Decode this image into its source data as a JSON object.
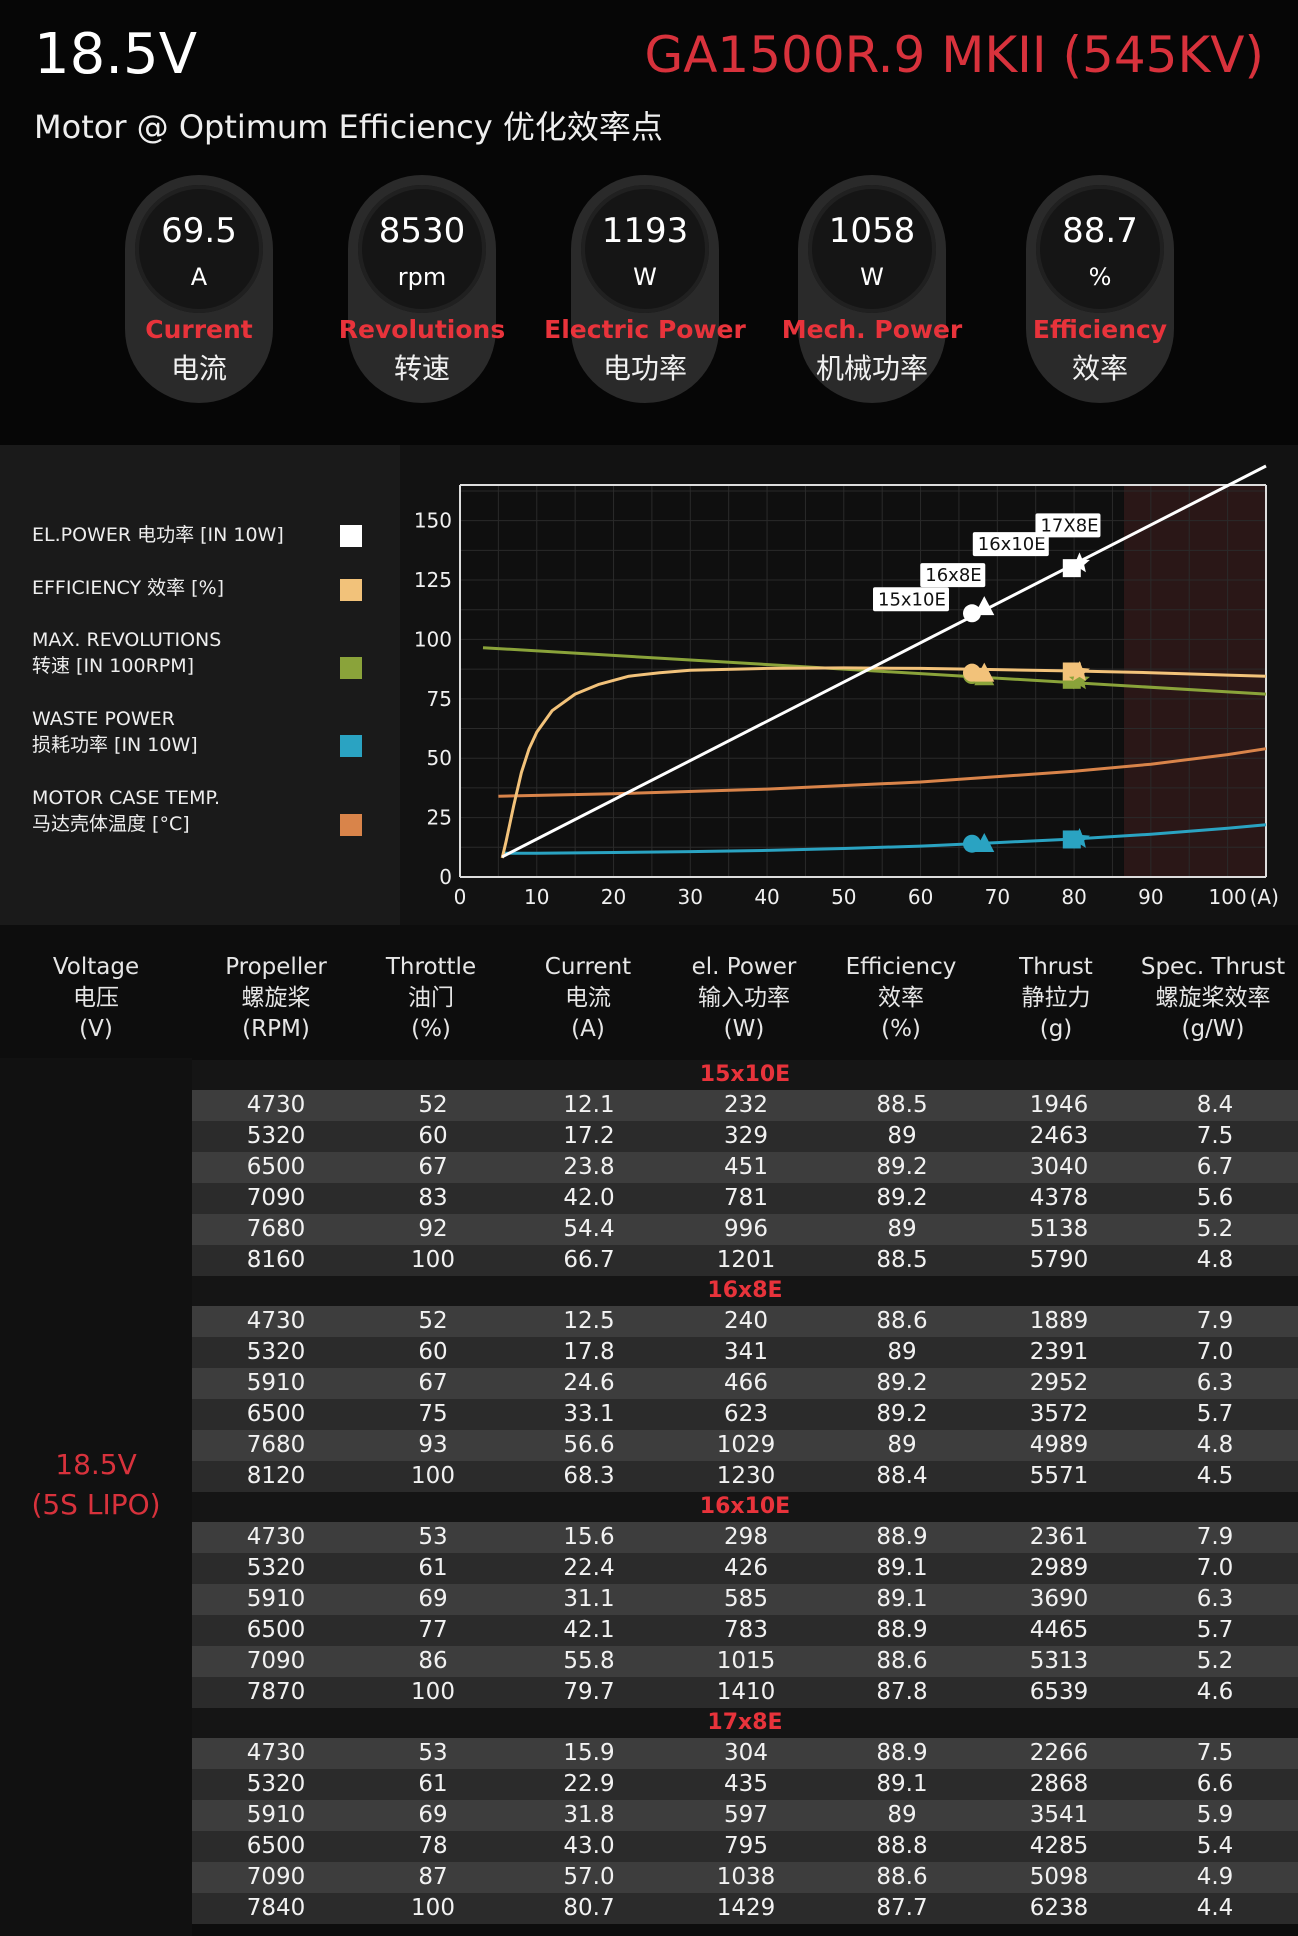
{
  "header": {
    "voltage": "18.5V",
    "model": "GA1500R.9 MKII (545KV)",
    "subtitle": "Motor @ Optimum Efficiency  优化效率点"
  },
  "metrics": [
    {
      "value": "69.5",
      "unit": "A",
      "en": "Current",
      "cn": "电流"
    },
    {
      "value": "8530",
      "unit": "rpm",
      "en": "Revolutions",
      "cn": "转速"
    },
    {
      "value": "1193",
      "unit": "W",
      "en": "Electric Power",
      "cn": "电功率"
    },
    {
      "value": "1058",
      "unit": "W",
      "en": "Mech. Power",
      "cn": "机械功率"
    },
    {
      "value": "88.7",
      "unit": "%",
      "en": "Efficiency",
      "cn": "效率"
    }
  ],
  "legend": [
    {
      "line1": "EL.POWER 电功率 [IN 10W]",
      "line2": "",
      "color": "#ffffff"
    },
    {
      "line1": "EFFICIENCY 效率 [%]",
      "line2": "",
      "color": "#f2c27a"
    },
    {
      "line1": "MAX. REVOLUTIONS",
      "line2": "转速 [IN 100RPM]",
      "color": "#8aa33a"
    },
    {
      "line1": "WASTE POWER",
      "line2": "损耗功率 [IN 10W]",
      "color": "#2aa3c2"
    },
    {
      "line1": "MOTOR CASE TEMP.",
      "line2": "马达壳体温度 [°C]",
      "color": "#d9844a"
    }
  ],
  "chart_data": {
    "type": "line",
    "xlabel": "(A)",
    "xlim": [
      0,
      105
    ],
    "ylim": [
      0,
      165
    ],
    "x_ticks": [
      0,
      10,
      20,
      30,
      40,
      50,
      60,
      70,
      80,
      90,
      100
    ],
    "y_ticks": [
      0,
      25,
      50,
      75,
      100,
      125,
      150
    ],
    "grid": true,
    "shaded_region_x": [
      86.5,
      105
    ],
    "series": [
      {
        "name": "EL.POWER 电功率 [IN 10W]",
        "color": "#ffffff",
        "x": [
          5.5,
          105
        ],
        "y": [
          8.5,
          173
        ]
      },
      {
        "name": "EFFICIENCY 效率 [%]",
        "color": "#f2c27a",
        "x": [
          5.5,
          6,
          7,
          8,
          9,
          10,
          12,
          15,
          18,
          22,
          26,
          30,
          40,
          50,
          60,
          70,
          80,
          90,
          100,
          105
        ],
        "y": [
          8,
          15,
          30,
          44,
          54,
          61,
          70,
          77,
          81,
          84.5,
          86,
          87,
          87.8,
          88,
          87.8,
          87.3,
          86.7,
          86,
          85,
          84.5
        ]
      },
      {
        "name": "MAX. REVOLUTIONS 转速 [IN 100RPM]",
        "color": "#8aa33a",
        "x": [
          3,
          105
        ],
        "y": [
          96.5,
          77
        ]
      },
      {
        "name": "WASTE POWER 损耗功率 [IN 10W]",
        "color": "#2aa3c2",
        "x": [
          5.5,
          10,
          20,
          30,
          40,
          50,
          60,
          70,
          80,
          90,
          100,
          105
        ],
        "y": [
          10,
          10,
          10.3,
          10.7,
          11.2,
          12,
          13,
          14.5,
          16,
          18,
          20.5,
          22
        ]
      },
      {
        "name": "MOTOR CASE TEMP. 马达壳体温度 [°C]",
        "color": "#d9844a",
        "x": [
          5,
          20,
          40,
          60,
          80,
          90,
          100,
          105
        ],
        "y": [
          34,
          35,
          37,
          40,
          44.5,
          47.5,
          51.5,
          54
        ]
      }
    ],
    "prop_points": [
      {
        "label": "15x10E",
        "x": 66.7,
        "marker": "circle",
        "power": 111,
        "eff": 86,
        "rpm": 85,
        "waste": 14
      },
      {
        "label": "16x8E",
        "x": 68.3,
        "marker": "triangle",
        "power": 114,
        "eff": 86,
        "rpm": 84.5,
        "waste": 14.3
      },
      {
        "label": "16x10E",
        "x": 79.7,
        "marker": "square",
        "power": 130,
        "eff": 86.5,
        "rpm": 83,
        "waste": 15.8
      },
      {
        "label": "17X8E",
        "x": 80.7,
        "marker": "star",
        "power": 132,
        "eff": 86.3,
        "rpm": 82.8,
        "waste": 16
      }
    ]
  },
  "table": {
    "headers": [
      {
        "en": "Voltage",
        "cn": "电压",
        "unit": "(V)"
      },
      {
        "en": "Propeller",
        "cn": "螺旋桨",
        "unit": "(RPM)"
      },
      {
        "en": "Throttle",
        "cn": "油门",
        "unit": "(%)"
      },
      {
        "en": "Current",
        "cn": "电流",
        "unit": "(A)"
      },
      {
        "en": "el. Power",
        "cn": "输入功率",
        "unit": "(W)"
      },
      {
        "en": "Efficiency",
        "cn": "效率",
        "unit": "(%)"
      },
      {
        "en": "Thrust",
        "cn": "静拉力",
        "unit": "(g)"
      },
      {
        "en": "Spec. Thrust",
        "cn": "螺旋桨效率",
        "unit": "(g/W)"
      }
    ],
    "voltage_line1": "18.5V",
    "voltage_line2": "(5S LIPO)",
    "groups": [
      {
        "name": "15x10E",
        "rows": [
          [
            "4730",
            "52",
            "12.1",
            "232",
            "88.5",
            "1946",
            "8.4"
          ],
          [
            "5320",
            "60",
            "17.2",
            "329",
            "89",
            "2463",
            "7.5"
          ],
          [
            "6500",
            "67",
            "23.8",
            "451",
            "89.2",
            "3040",
            "6.7"
          ],
          [
            "7090",
            "83",
            "42.0",
            "781",
            "89.2",
            "4378",
            "5.6"
          ],
          [
            "7680",
            "92",
            "54.4",
            "996",
            "89",
            "5138",
            "5.2"
          ],
          [
            "8160",
            "100",
            "66.7",
            "1201",
            "88.5",
            "5790",
            "4.8"
          ]
        ]
      },
      {
        "name": "16x8E",
        "rows": [
          [
            "4730",
            "52",
            "12.5",
            "240",
            "88.6",
            "1889",
            "7.9"
          ],
          [
            "5320",
            "60",
            "17.8",
            "341",
            "89",
            "2391",
            "7.0"
          ],
          [
            "5910",
            "67",
            "24.6",
            "466",
            "89.2",
            "2952",
            "6.3"
          ],
          [
            "6500",
            "75",
            "33.1",
            "623",
            "89.2",
            "3572",
            "5.7"
          ],
          [
            "7680",
            "93",
            "56.6",
            "1029",
            "89",
            "4989",
            "4.8"
          ],
          [
            "8120",
            "100",
            "68.3",
            "1230",
            "88.4",
            "5571",
            "4.5"
          ]
        ]
      },
      {
        "name": "16x10E",
        "rows": [
          [
            "4730",
            "53",
            "15.6",
            "298",
            "88.9",
            "2361",
            "7.9"
          ],
          [
            "5320",
            "61",
            "22.4",
            "426",
            "89.1",
            "2989",
            "7.0"
          ],
          [
            "5910",
            "69",
            "31.1",
            "585",
            "89.1",
            "3690",
            "6.3"
          ],
          [
            "6500",
            "77",
            "42.1",
            "783",
            "88.9",
            "4465",
            "5.7"
          ],
          [
            "7090",
            "86",
            "55.8",
            "1015",
            "88.6",
            "5313",
            "5.2"
          ],
          [
            "7870",
            "100",
            "79.7",
            "1410",
            "87.8",
            "6539",
            "4.6"
          ]
        ]
      },
      {
        "name": "17x8E",
        "rows": [
          [
            "4730",
            "53",
            "15.9",
            "304",
            "88.9",
            "2266",
            "7.5"
          ],
          [
            "5320",
            "61",
            "22.9",
            "435",
            "89.1",
            "2868",
            "6.6"
          ],
          [
            "5910",
            "69",
            "31.8",
            "597",
            "89",
            "3541",
            "5.9"
          ],
          [
            "6500",
            "78",
            "43.0",
            "795",
            "88.8",
            "4285",
            "5.4"
          ],
          [
            "7090",
            "87",
            "57.0",
            "1038",
            "88.6",
            "5098",
            "4.9"
          ],
          [
            "7840",
            "100",
            "80.7",
            "1429",
            "87.7",
            "6238",
            "4.4"
          ]
        ]
      }
    ]
  }
}
